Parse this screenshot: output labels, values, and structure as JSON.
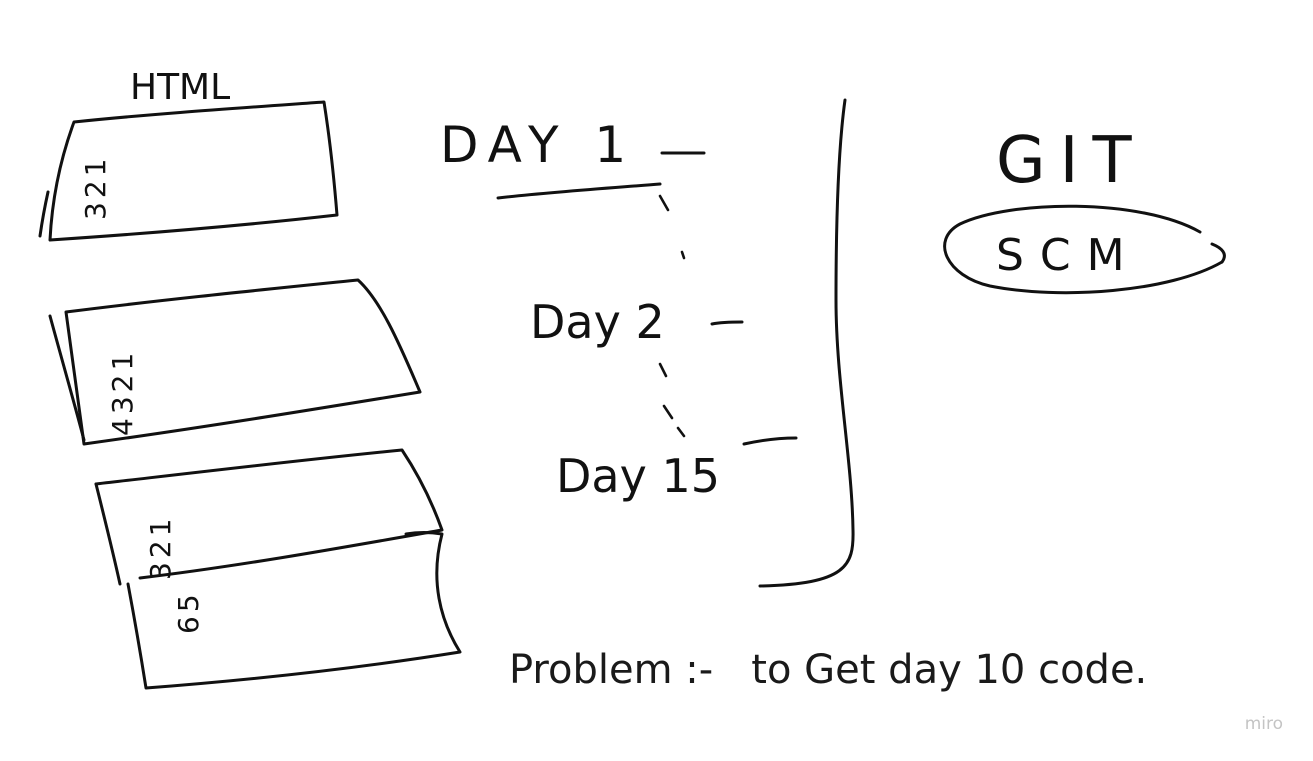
{
  "canvas": {
    "background": "#ffffff",
    "ink_color": "#111111"
  },
  "html_stack": {
    "label": "HTML",
    "box1_lines": [
      "1",
      "2",
      "3"
    ],
    "box2_lines": [
      "1",
      "2",
      "3",
      "4"
    ],
    "box3_lines": [
      "1",
      "2",
      "3",
      "5",
      "6"
    ]
  },
  "days": {
    "day1": "DAY 1",
    "day2": "Day 2",
    "day15": "Day 15"
  },
  "git": {
    "title": "GIT",
    "subtitle": "SCM"
  },
  "problem": {
    "text": "Problem :-   to Get day 10 code."
  },
  "watermark": {
    "text": "miro"
  }
}
